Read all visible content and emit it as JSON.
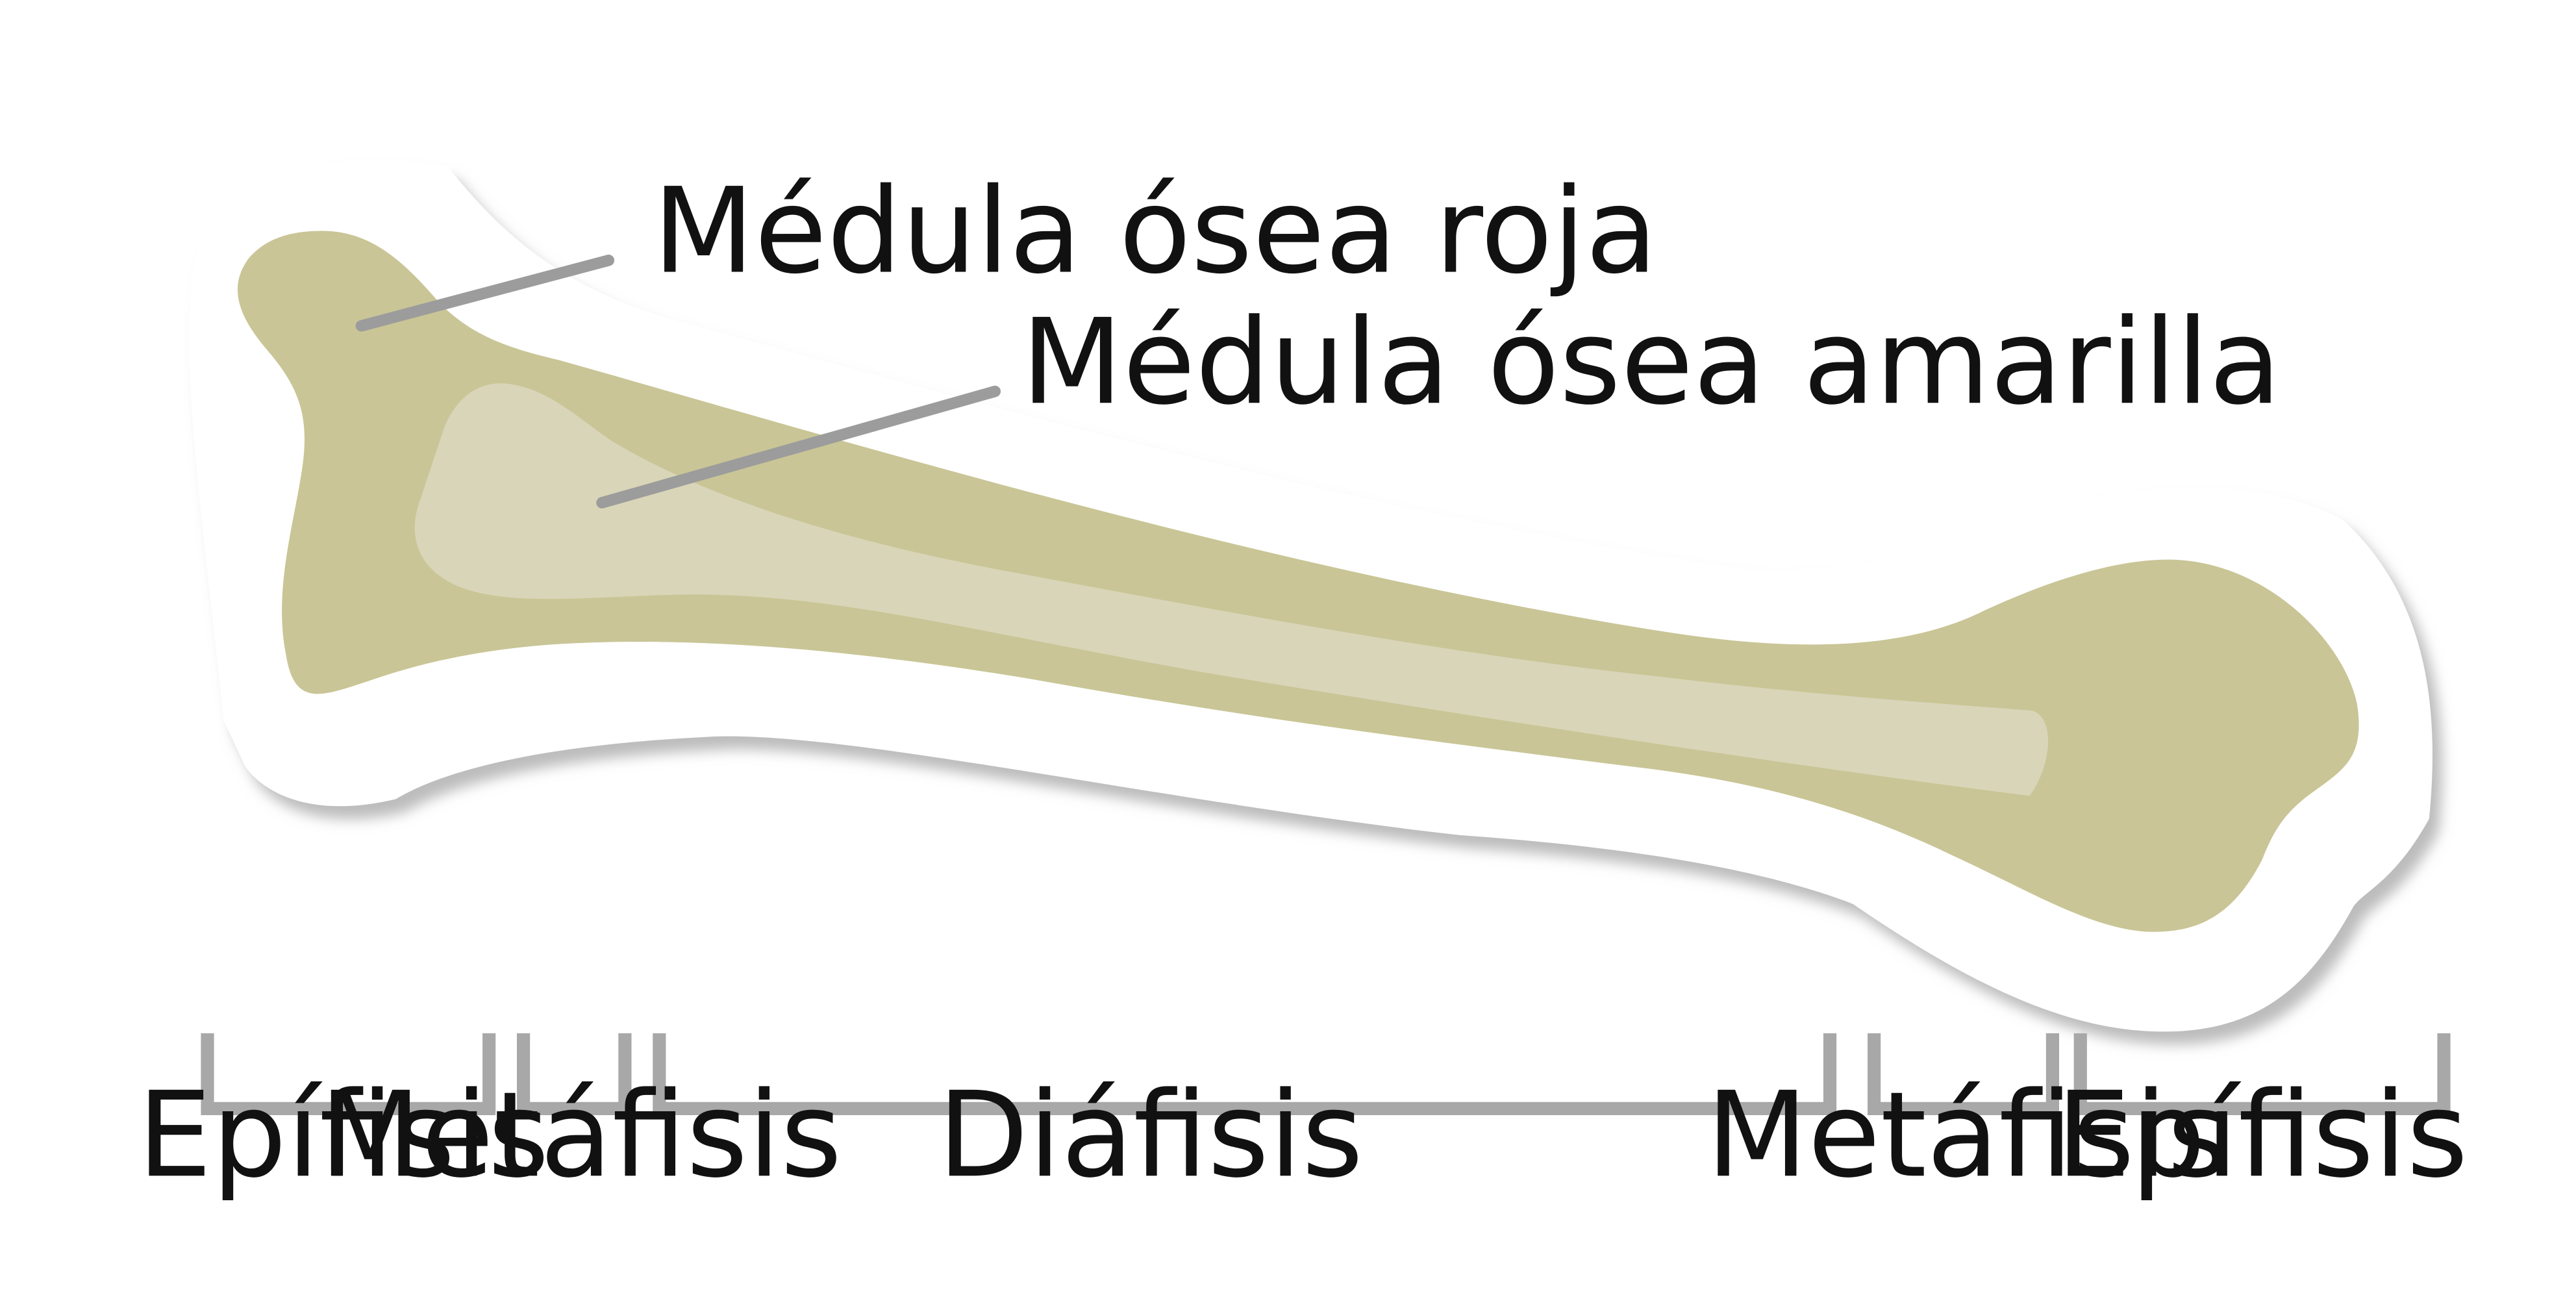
{
  "callouts": {
    "red_marrow": "Médula ósea roja",
    "yellow_marrow": "Médula ósea amarilla"
  },
  "regions": [
    "Epífisis",
    "Metáfisis",
    "Diáfisis",
    "Metáfisis",
    "Epífisis"
  ],
  "colors": {
    "bone": "#c9c596",
    "yellow_marrow": "#d9d5b8",
    "outline": "#ffffff",
    "shadow": "#c8c8c8",
    "leader": "#9c9c9c",
    "bracket": "#a8a8a8",
    "text": "#111111"
  }
}
